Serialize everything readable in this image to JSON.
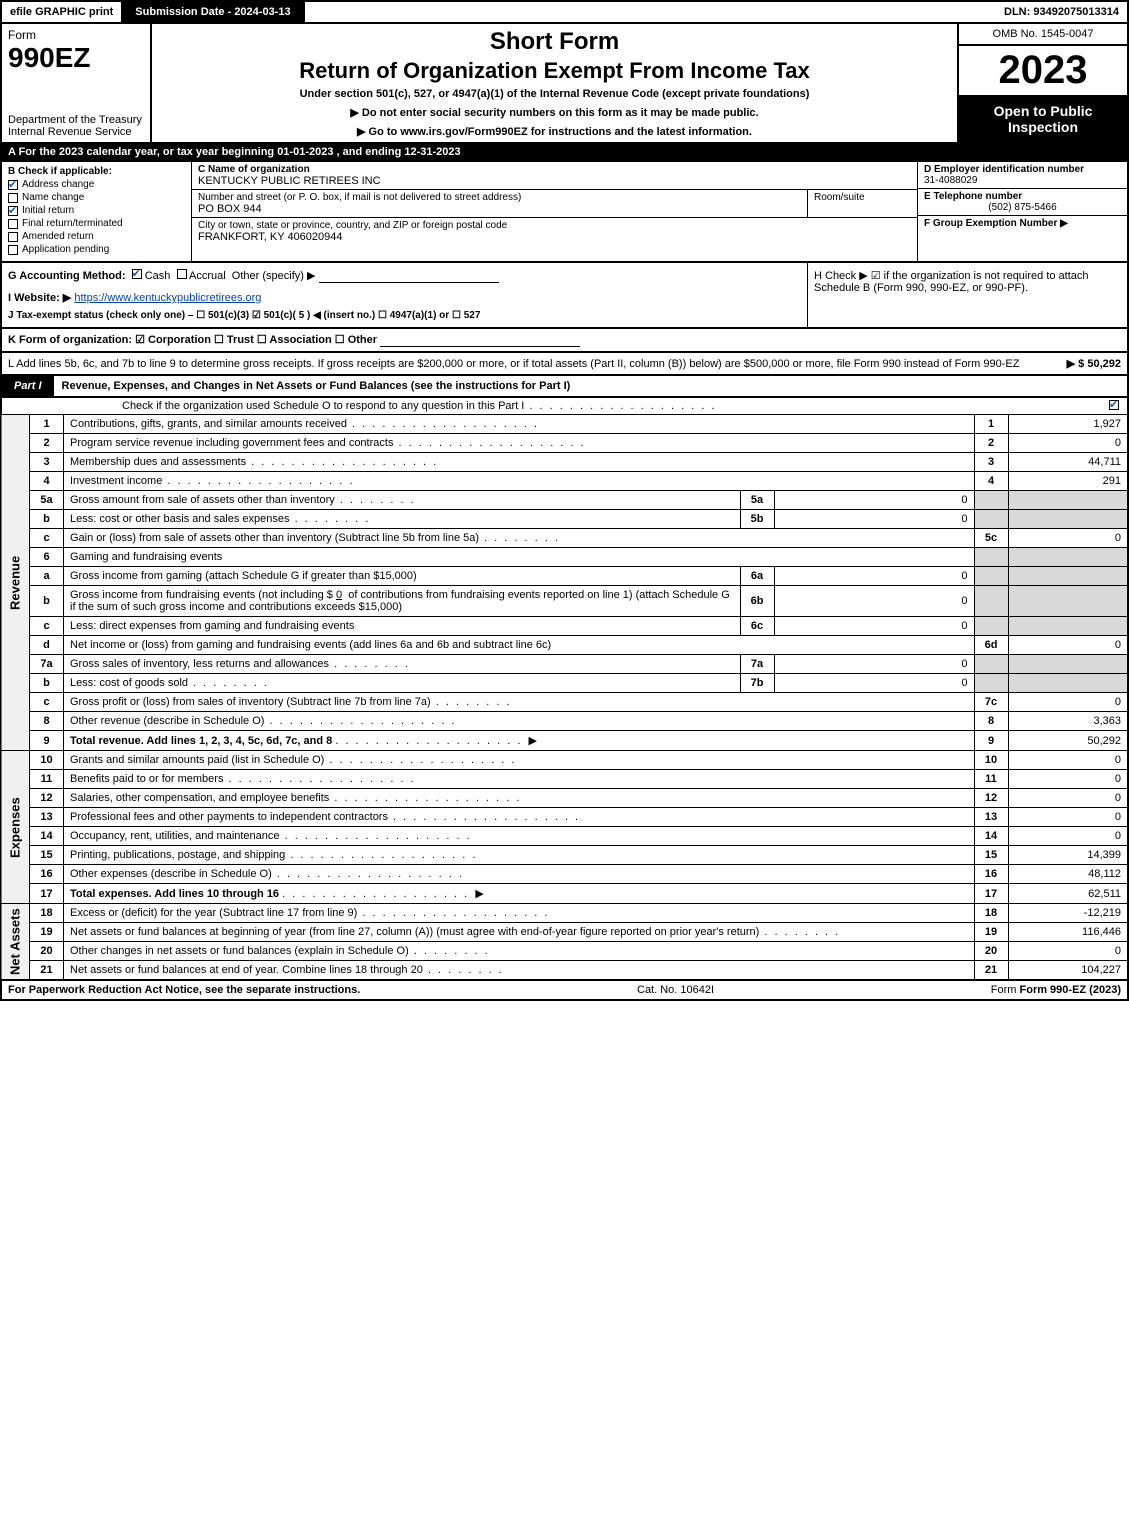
{
  "topbar": {
    "efile": "efile GRAPHIC print",
    "submission": "Submission Date - 2024-03-13",
    "dln": "DLN: 93492075013314"
  },
  "header": {
    "form_label": "Form",
    "form_number": "990EZ",
    "dept": "Department of the Treasury\nInternal Revenue Service",
    "short_form": "Short Form",
    "return_title": "Return of Organization Exempt From Income Tax",
    "under_section": "Under section 501(c), 527, or 4947(a)(1) of the Internal Revenue Code (except private foundations)",
    "line_ssn": "▶ Do not enter social security numbers on this form as it may be made public.",
    "line_goto": "▶ Go to www.irs.gov/Form990EZ for instructions and the latest information.",
    "omb": "OMB No. 1545-0047",
    "year": "2023",
    "open_public": "Open to Public Inspection"
  },
  "row_a": "A  For the 2023 calendar year, or tax year beginning 01-01-2023 , and ending 12-31-2023",
  "check_b": {
    "header": "B  Check if applicable:",
    "items": [
      {
        "label": "Address change",
        "checked": true
      },
      {
        "label": "Name change",
        "checked": false
      },
      {
        "label": "Initial return",
        "checked": true
      },
      {
        "label": "Final return/terminated",
        "checked": false
      },
      {
        "label": "Amended return",
        "checked": false
      },
      {
        "label": "Application pending",
        "checked": false
      }
    ]
  },
  "org": {
    "name_hdr": "C Name of organization",
    "name": "KENTUCKY PUBLIC RETIREES INC",
    "addr_hdr": "Number and street (or P. O. box, if mail is not delivered to street address)",
    "addr": "PO BOX 944",
    "room_hdr": "Room/suite",
    "room": "",
    "city_hdr": "City or town, state or province, country, and ZIP or foreign postal code",
    "city": "FRANKFORT, KY  406020944"
  },
  "ein_col": {
    "d_hdr": "D Employer identification number",
    "ein": "31-4088029",
    "e_hdr": "E Telephone number",
    "phone": "(502) 875-5466",
    "f_hdr": "F Group Exemption Number   ▶",
    "f_val": ""
  },
  "g_row": {
    "g_label": "G Accounting Method:",
    "cash": "Cash",
    "accrual": "Accrual",
    "other": "Other (specify) ▶",
    "i_label": "I Website: ▶",
    "website": "https://www.kentuckypublicretirees.org",
    "j_label": "J Tax-exempt status (check only one) –  ☐ 501(c)(3)  ☑ 501(c)( 5 ) ◀ (insert no.)  ☐ 4947(a)(1) or  ☐ 527"
  },
  "h_row": "H  Check ▶ ☑ if the organization is not required to attach Schedule B (Form 990, 990-EZ, or 990-PF).",
  "k_row": "K Form of organization:   ☑ Corporation   ☐ Trust   ☐ Association   ☐ Other",
  "l_row": {
    "text": "L Add lines 5b, 6c, and 7b to line 9 to determine gross receipts. If gross receipts are $200,000 or more, or if total assets (Part II, column (B)) below) are $500,000 or more, file Form 990 instead of Form 990-EZ",
    "amount": "▶ $ 50,292"
  },
  "part1": {
    "tag": "Part I",
    "title": "Revenue, Expenses, and Changes in Net Assets or Fund Balances (see the instructions for Part I)",
    "check_line": "Check if the organization used Schedule O to respond to any question in this Part I",
    "checked": true
  },
  "side_labels": {
    "revenue": "Revenue",
    "expenses": "Expenses",
    "net_assets": "Net Assets"
  },
  "lines": {
    "l1": {
      "no": "1",
      "desc": "Contributions, gifts, grants, and similar amounts received",
      "num": "1",
      "val": "1,927"
    },
    "l2": {
      "no": "2",
      "desc": "Program service revenue including government fees and contracts",
      "num": "2",
      "val": "0"
    },
    "l3": {
      "no": "3",
      "desc": "Membership dues and assessments",
      "num": "3",
      "val": "44,711"
    },
    "l4": {
      "no": "4",
      "desc": "Investment income",
      "num": "4",
      "val": "291"
    },
    "l5a": {
      "no": "5a",
      "desc": "Gross amount from sale of assets other than inventory",
      "sub": "5a",
      "subval": "0"
    },
    "l5b": {
      "no": "b",
      "desc": "Less: cost or other basis and sales expenses",
      "sub": "5b",
      "subval": "0"
    },
    "l5c": {
      "no": "c",
      "desc": "Gain or (loss) from sale of assets other than inventory (Subtract line 5b from line 5a)",
      "num": "5c",
      "val": "0"
    },
    "l6": {
      "no": "6",
      "desc": "Gaming and fundraising events"
    },
    "l6a": {
      "no": "a",
      "desc": "Gross income from gaming (attach Schedule G if greater than $15,000)",
      "sub": "6a",
      "subval": "0"
    },
    "l6b": {
      "no": "b",
      "desc1": "Gross income from fundraising events (not including $",
      "desc_amt": "0",
      "desc2": "of contributions from fundraising events reported on line 1) (attach Schedule G if the sum of such gross income and contributions exceeds $15,000)",
      "sub": "6b",
      "subval": "0"
    },
    "l6c": {
      "no": "c",
      "desc": "Less: direct expenses from gaming and fundraising events",
      "sub": "6c",
      "subval": "0"
    },
    "l6d": {
      "no": "d",
      "desc": "Net income or (loss) from gaming and fundraising events (add lines 6a and 6b and subtract line 6c)",
      "num": "6d",
      "val": "0"
    },
    "l7a": {
      "no": "7a",
      "desc": "Gross sales of inventory, less returns and allowances",
      "sub": "7a",
      "subval": "0"
    },
    "l7b": {
      "no": "b",
      "desc": "Less: cost of goods sold",
      "sub": "7b",
      "subval": "0"
    },
    "l7c": {
      "no": "c",
      "desc": "Gross profit or (loss) from sales of inventory (Subtract line 7b from line 7a)",
      "num": "7c",
      "val": "0"
    },
    "l8": {
      "no": "8",
      "desc": "Other revenue (describe in Schedule O)",
      "num": "8",
      "val": "3,363"
    },
    "l9": {
      "no": "9",
      "desc": "Total revenue. Add lines 1, 2, 3, 4, 5c, 6d, 7c, and 8",
      "num": "9",
      "val": "50,292"
    },
    "l10": {
      "no": "10",
      "desc": "Grants and similar amounts paid (list in Schedule O)",
      "num": "10",
      "val": "0"
    },
    "l11": {
      "no": "11",
      "desc": "Benefits paid to or for members",
      "num": "11",
      "val": "0"
    },
    "l12": {
      "no": "12",
      "desc": "Salaries, other compensation, and employee benefits",
      "num": "12",
      "val": "0"
    },
    "l13": {
      "no": "13",
      "desc": "Professional fees and other payments to independent contractors",
      "num": "13",
      "val": "0"
    },
    "l14": {
      "no": "14",
      "desc": "Occupancy, rent, utilities, and maintenance",
      "num": "14",
      "val": "0"
    },
    "l15": {
      "no": "15",
      "desc": "Printing, publications, postage, and shipping",
      "num": "15",
      "val": "14,399"
    },
    "l16": {
      "no": "16",
      "desc": "Other expenses (describe in Schedule O)",
      "num": "16",
      "val": "48,112"
    },
    "l17": {
      "no": "17",
      "desc": "Total expenses. Add lines 10 through 16",
      "num": "17",
      "val": "62,511"
    },
    "l18": {
      "no": "18",
      "desc": "Excess or (deficit) for the year (Subtract line 17 from line 9)",
      "num": "18",
      "val": "-12,219"
    },
    "l19": {
      "no": "19",
      "desc": "Net assets or fund balances at beginning of year (from line 27, column (A)) (must agree with end-of-year figure reported on prior year's return)",
      "num": "19",
      "val": "116,446"
    },
    "l20": {
      "no": "20",
      "desc": "Other changes in net assets or fund balances (explain in Schedule O)",
      "num": "20",
      "val": "0"
    },
    "l21": {
      "no": "21",
      "desc": "Net assets or fund balances at end of year. Combine lines 18 through 20",
      "num": "21",
      "val": "104,227"
    }
  },
  "footer": {
    "left": "For Paperwork Reduction Act Notice, see the separate instructions.",
    "center": "Cat. No. 10642I",
    "right": "Form 990-EZ (2023)"
  },
  "colors": {
    "black": "#000000",
    "white": "#ffffff",
    "shaded": "#d9d9d9",
    "link": "#0645ad",
    "check": "#1a5fb4"
  }
}
